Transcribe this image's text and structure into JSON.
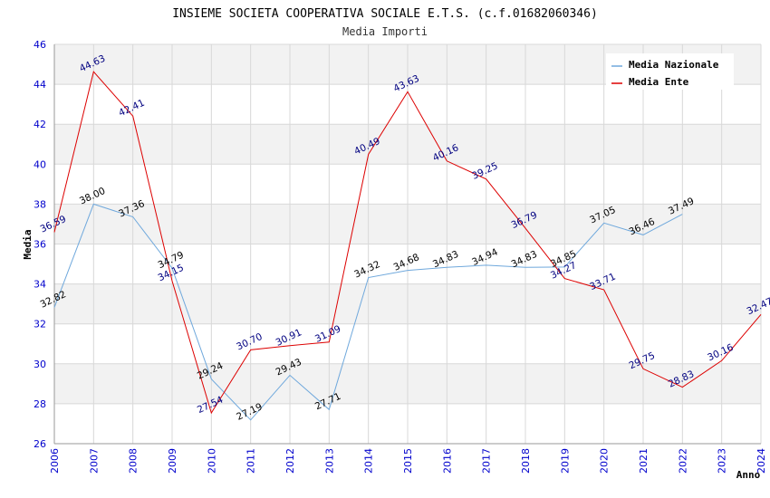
{
  "chart_data": {
    "type": "line",
    "title": "INSIEME SOCIETA COOPERATIVA SOCIALE E.T.S. (c.f.01682060346)",
    "subtitle": "Media Importi",
    "ylabel": "Media",
    "xlabel": "Anno",
    "ylim": [
      26,
      46
    ],
    "yticks": [
      "26",
      "28",
      "30",
      "32",
      "34",
      "36",
      "38",
      "40",
      "42",
      "44",
      "46"
    ],
    "x": [
      "2006",
      "2007",
      "2008",
      "2009",
      "2010",
      "2011",
      "2012",
      "2013",
      "2014",
      "2015",
      "2016",
      "2017",
      "2018",
      "2019",
      "2020",
      "2021",
      "2022",
      "2023",
      "2024"
    ],
    "grid": true,
    "legend_position": "top-right",
    "series": [
      {
        "name": "Media Nazionale",
        "color": "#6fa8dc",
        "values": [
          32.82,
          38.0,
          37.36,
          34.79,
          29.24,
          27.19,
          29.43,
          27.71,
          34.32,
          34.68,
          34.83,
          34.94,
          34.83,
          34.85,
          37.05,
          36.46,
          37.49,
          null,
          null
        ],
        "labels": [
          "32.82",
          "38.00",
          "37.36",
          "34.79",
          "29.24",
          "27.19",
          "29.43",
          "27.71",
          "34.32",
          "34.68",
          "34.83",
          "34.94",
          "34.83",
          "34.85",
          "37.05",
          "36.46",
          "37.49",
          "",
          ""
        ]
      },
      {
        "name": "Media Ente",
        "color": "#dd0000",
        "values": [
          36.59,
          44.63,
          42.41,
          34.15,
          27.54,
          30.7,
          30.91,
          31.09,
          40.49,
          43.63,
          40.16,
          39.25,
          36.79,
          34.27,
          33.71,
          29.75,
          28.83,
          30.16,
          32.47
        ],
        "labels": [
          "36.59",
          "44.63",
          "42.41",
          "34.15",
          "27.54",
          "30.70",
          "30.91",
          "31.09",
          "40.49",
          "43.63",
          "40.16",
          "39.25",
          "36.79",
          "34.27",
          "33.71",
          "29.75",
          "28.83",
          "30.16",
          "32.47"
        ]
      }
    ]
  }
}
